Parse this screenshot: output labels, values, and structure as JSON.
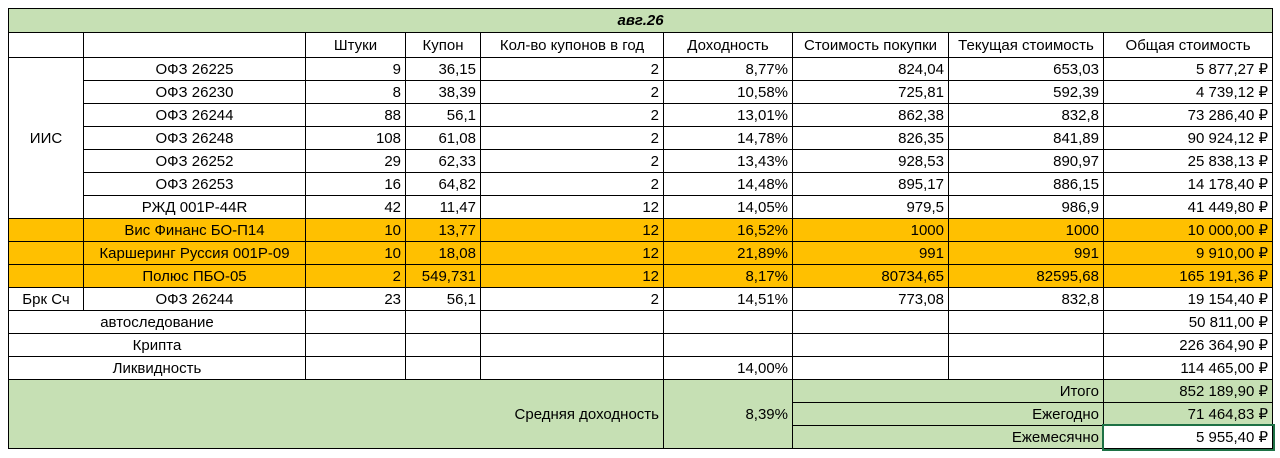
{
  "title": "авг.26",
  "headers": [
    "Штуки",
    "Купон",
    "Кол-во купонов в год",
    "Доходность",
    "Стоимость покупки",
    "Текущая стоимость",
    "Общая стоимость"
  ],
  "sections": [
    {
      "label": "ИИС",
      "rows": [
        [
          "ОФЗ 26225",
          "9",
          "36,15",
          "2",
          "8,77%",
          "824,04",
          "653,03",
          "5 877,27 ₽"
        ],
        [
          "ОФЗ 26230",
          "8",
          "38,39",
          "2",
          "10,58%",
          "725,81",
          "592,39",
          "4 739,12 ₽"
        ],
        [
          "ОФЗ 26244",
          "88",
          "56,1",
          "2",
          "13,01%",
          "862,38",
          "832,8",
          "73 286,40 ₽"
        ],
        [
          "ОФЗ 26248",
          "108",
          "61,08",
          "2",
          "14,78%",
          "826,35",
          "841,89",
          "90 924,12 ₽"
        ],
        [
          "ОФЗ 26252",
          "29",
          "62,33",
          "2",
          "13,43%",
          "928,53",
          "890,97",
          "25 838,13 ₽"
        ],
        [
          "ОФЗ 26253",
          "16",
          "64,82",
          "2",
          "14,48%",
          "895,17",
          "886,15",
          "14 178,40 ₽"
        ],
        [
          "РЖД 001Р-44R",
          "42",
          "11,47",
          "12",
          "14,05%",
          "979,5",
          "986,9",
          "41 449,80 ₽"
        ]
      ]
    },
    {
      "highlight": "#ffc000",
      "rows": [
        [
          "Вис Финанс БО-П14",
          "10",
          "13,77",
          "12",
          "16,52%",
          "1000",
          "1000",
          "10 000,00 ₽"
        ],
        [
          "Каршеринг Руссия 001Р-09",
          "10",
          "18,08",
          "12",
          "21,89%",
          "991",
          "991",
          "9 910,00 ₽"
        ],
        [
          "Полюс ПБО-05",
          "2",
          "549,731",
          "12",
          "8,17%",
          "80734,65",
          "82595,68",
          "165 191,36 ₽"
        ]
      ]
    },
    {
      "label": "Брк Сч",
      "rows": [
        [
          "ОФЗ 26244",
          "23",
          "56,1",
          "2",
          "14,51%",
          "773,08",
          "832,8",
          "19 154,40 ₽"
        ]
      ]
    }
  ],
  "extra_rows": [
    {
      "name": "автоследование",
      "total": "50 811,00 ₽"
    },
    {
      "name": "Крипта",
      "total": "226 364,90 ₽"
    },
    {
      "name": "Ликвидность",
      "yield": "14,00%",
      "total": "114 465,00 ₽"
    }
  ],
  "summary": {
    "label": "Средняя доходность",
    "value": "8,39%",
    "lines": [
      {
        "label": "Итого",
        "value": "852 189,90 ₽"
      },
      {
        "label": "Ежегодно",
        "value": "71 464,83 ₽"
      },
      {
        "label": "Ежемесячно",
        "value": "5 955,40 ₽"
      }
    ]
  }
}
